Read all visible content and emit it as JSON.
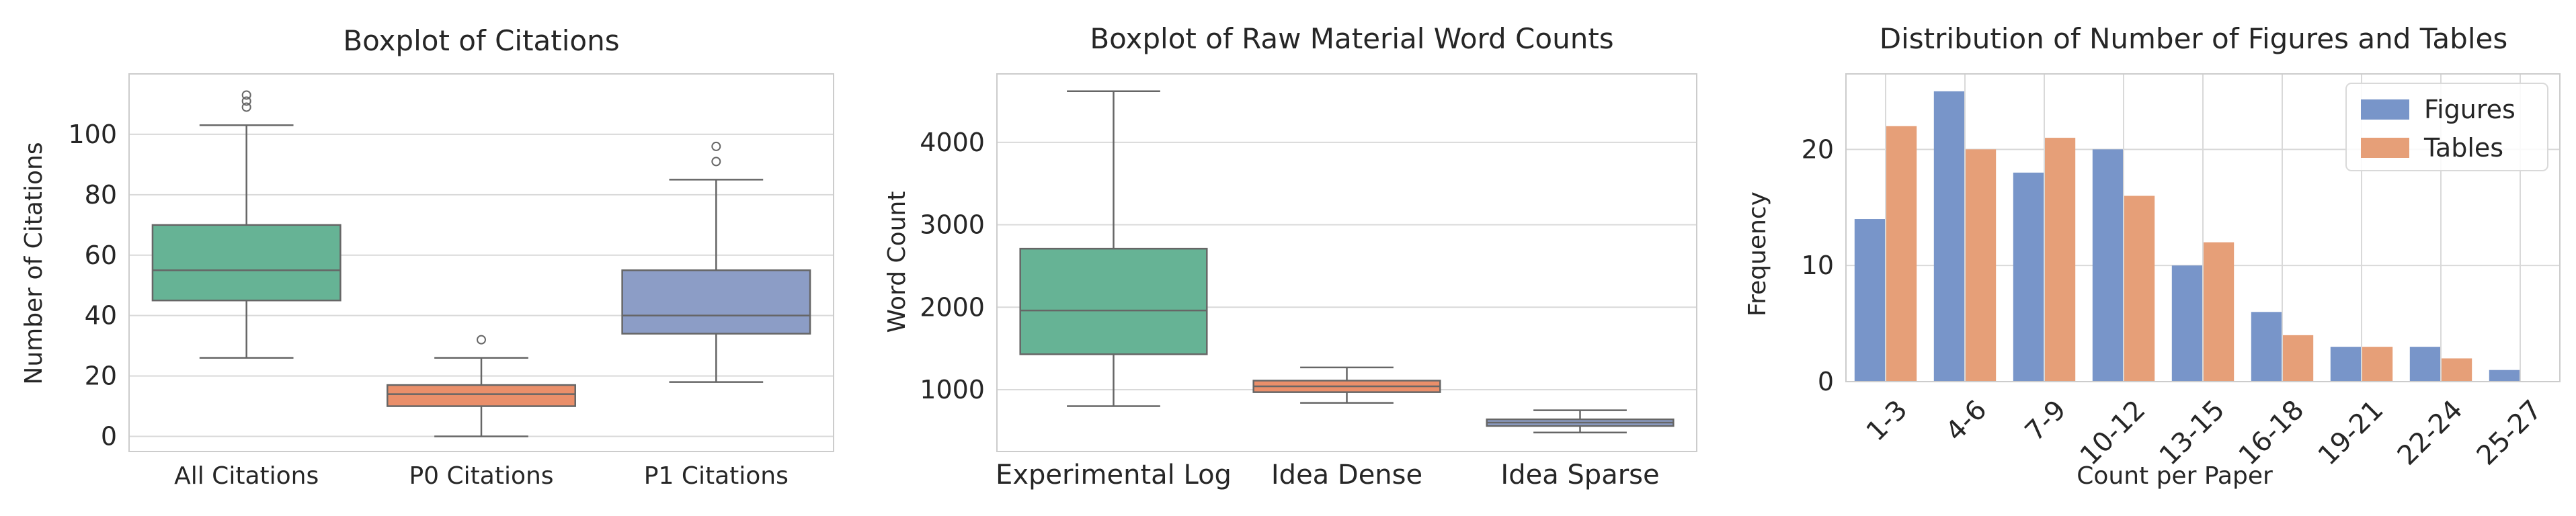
{
  "chart_data": [
    {
      "type": "boxplot",
      "title": "Boxplot of Citations",
      "xlabel": "",
      "ylabel": "Number of Citations",
      "ylim": [
        -5,
        120
      ],
      "yticks": [
        0,
        20,
        40,
        60,
        80,
        100
      ],
      "grid": true,
      "categories": [
        "All Citations",
        "P0 Citations",
        "P1 Citations"
      ],
      "boxes": [
        {
          "name": "All Citations",
          "whisker_low": 26,
          "q1": 45,
          "median": 55,
          "q3": 70,
          "whisker_high": 103,
          "outliers": [
            109,
            111,
            113
          ],
          "color": "#66b395"
        },
        {
          "name": "P0 Citations",
          "whisker_low": 0,
          "q1": 10,
          "median": 14,
          "q3": 17,
          "whisker_high": 26,
          "outliers": [
            32
          ],
          "color": "#ea8f6a"
        },
        {
          "name": "P1 Citations",
          "whisker_low": 18,
          "q1": 34,
          "median": 40,
          "q3": 55,
          "whisker_high": 85,
          "outliers": [
            91,
            96
          ],
          "color": "#8c9dc6"
        }
      ]
    },
    {
      "type": "boxplot",
      "title": "Boxplot of Raw Material Word Counts",
      "xlabel": "",
      "ylabel": "Word Count",
      "ylim": [
        250,
        4830
      ],
      "yticks": [
        1000,
        2000,
        3000,
        4000
      ],
      "grid": true,
      "categories": [
        "Experimental Log",
        "Idea Dense",
        "Idea Sparse"
      ],
      "boxes": [
        {
          "name": "Experimental Log",
          "whisker_low": 800,
          "q1": 1430,
          "median": 1960,
          "q3": 2710,
          "whisker_high": 4620,
          "outliers": [],
          "color": "#66b395"
        },
        {
          "name": "Idea Dense",
          "whisker_low": 840,
          "q1": 970,
          "median": 1040,
          "q3": 1110,
          "whisker_high": 1270,
          "outliers": [],
          "color": "#ea8f6a"
        },
        {
          "name": "Idea Sparse",
          "whisker_low": 480,
          "q1": 560,
          "median": 600,
          "q3": 640,
          "whisker_high": 750,
          "outliers": [],
          "color": "#8c9dc6"
        }
      ]
    },
    {
      "type": "bar",
      "title": "Distribution of Number of Figures and Tables",
      "xlabel": "Count per Paper",
      "ylabel": "Frequency",
      "ylim": [
        0,
        26.5
      ],
      "yticks": [
        0,
        10,
        20
      ],
      "grid": true,
      "legend_position": "top-right",
      "categories": [
        "1-3",
        "4-6",
        "7-9",
        "10-12",
        "13-15",
        "16-18",
        "19-21",
        "22-24",
        "25-27"
      ],
      "series": [
        {
          "name": "Figures",
          "values": [
            14,
            25,
            18,
            20,
            10,
            6,
            3,
            3,
            1
          ],
          "color": "#7895c9"
        },
        {
          "name": "Tables",
          "values": [
            22,
            20,
            21,
            16,
            12,
            4,
            3,
            2,
            0
          ],
          "color": "#e69f78"
        }
      ]
    }
  ],
  "colors": {
    "grid": "#d9d9d9",
    "frame": "#cccccc",
    "whisker": "#666666",
    "text": "#262626"
  }
}
